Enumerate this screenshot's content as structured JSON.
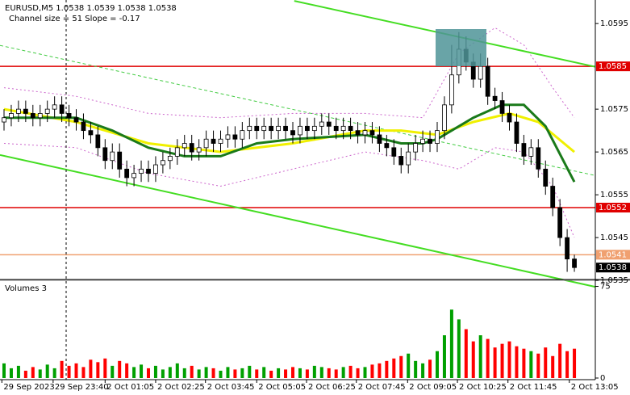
{
  "chart_data": {
    "type": "candlestick",
    "title": "EURUSD,M5  1.0538 1.0539 1.0538 1.0538",
    "subtitle": "Channel size = 51 Slope = -0.17",
    "volume_title": "Volumes 3",
    "open": [
      1.0572,
      1.0573,
      1.0574,
      1.0575,
      1.0574,
      1.0573,
      1.0574,
      1.0575,
      1.0576,
      1.0574,
      1.0573,
      1.0572,
      1.057,
      1.0569,
      1.0566,
      1.0563,
      1.0565,
      1.0561,
      1.0559,
      1.056,
      1.0561,
      1.056,
      1.0562,
      1.0563,
      1.0564,
      1.0566,
      1.0567,
      1.0565,
      1.0566,
      1.0568,
      1.0567,
      1.0568,
      1.0569,
      1.0568,
      1.057,
      1.0571,
      1.057,
      1.0571,
      1.057,
      1.0571,
      1.057,
      1.0569,
      1.0571,
      1.057,
      1.0571,
      1.0572,
      1.0571,
      1.057,
      1.0571,
      1.057,
      1.0569,
      1.057,
      1.0569,
      1.0567,
      1.0566,
      1.0564,
      1.0562,
      1.0565,
      1.0567,
      1.0568,
      1.0567,
      1.057,
      1.0576,
      1.0583,
      1.0589,
      1.0586,
      1.0582,
      1.0585,
      1.0578,
      1.0577,
      1.0574,
      1.0572,
      1.0567,
      1.0564,
      1.0566,
      1.0561,
      1.0557,
      1.0552,
      1.0545,
      1.054
    ],
    "high": [
      1.0575,
      1.0576,
      1.0577,
      1.0577,
      1.0576,
      1.0576,
      1.0577,
      1.0578,
      1.0578,
      1.0576,
      1.0575,
      1.0574,
      1.0572,
      1.0571,
      1.0568,
      1.0567,
      1.0567,
      1.0563,
      1.0562,
      1.0563,
      1.0563,
      1.0564,
      1.0565,
      1.0566,
      1.0568,
      1.0569,
      1.0569,
      1.0568,
      1.057,
      1.057,
      1.057,
      1.0571,
      1.0571,
      1.0572,
      1.0573,
      1.0573,
      1.0573,
      1.0573,
      1.0573,
      1.0573,
      1.0572,
      1.0573,
      1.0573,
      1.0573,
      1.0574,
      1.0574,
      1.0573,
      1.0573,
      1.0573,
      1.0572,
      1.0572,
      1.0572,
      1.0571,
      1.0569,
      1.0568,
      1.0566,
      1.0567,
      1.0569,
      1.057,
      1.057,
      1.0572,
      1.0578,
      1.059,
      1.0593,
      1.0592,
      1.0588,
      1.0588,
      1.0587,
      1.058,
      1.0579,
      1.0576,
      1.0574,
      1.0569,
      1.0568,
      1.0568,
      1.0563,
      1.0559,
      1.0554,
      1.0547,
      1.0541
    ],
    "low": [
      1.057,
      1.0571,
      1.0572,
      1.0572,
      1.0571,
      1.0571,
      1.0572,
      1.0573,
      1.0572,
      1.0571,
      1.057,
      1.0568,
      1.0567,
      1.0564,
      1.0561,
      1.0561,
      1.0559,
      1.0557,
      1.0557,
      1.0558,
      1.0558,
      1.0558,
      1.056,
      1.0561,
      1.0562,
      1.0564,
      1.0563,
      1.0563,
      1.0564,
      1.0565,
      1.0565,
      1.0566,
      1.0566,
      1.0566,
      1.0568,
      1.0568,
      1.0568,
      1.0568,
      1.0568,
      1.0568,
      1.0567,
      1.0567,
      1.0568,
      1.0568,
      1.0569,
      1.0569,
      1.0568,
      1.0568,
      1.0568,
      1.0567,
      1.0567,
      1.0567,
      1.0565,
      1.0564,
      1.0562,
      1.056,
      1.056,
      1.0563,
      1.0565,
      1.0565,
      1.0565,
      1.0568,
      1.0574,
      1.0581,
      1.0584,
      1.058,
      1.058,
      1.0576,
      1.0575,
      1.0572,
      1.057,
      1.0565,
      1.0562,
      1.0562,
      1.0559,
      1.0555,
      1.055,
      1.0543,
      1.0537,
      1.0537
    ],
    "close": [
      1.0573,
      1.0574,
      1.0575,
      1.0574,
      1.0573,
      1.0574,
      1.0575,
      1.0576,
      1.0574,
      1.0573,
      1.0572,
      1.057,
      1.0569,
      1.0566,
      1.0563,
      1.0565,
      1.0561,
      1.0559,
      1.056,
      1.0561,
      1.056,
      1.0562,
      1.0563,
      1.0564,
      1.0566,
      1.0567,
      1.0565,
      1.0566,
      1.0568,
      1.0567,
      1.0568,
      1.0569,
      1.0568,
      1.057,
      1.0571,
      1.057,
      1.0571,
      1.057,
      1.0571,
      1.057,
      1.0569,
      1.0571,
      1.057,
      1.0571,
      1.0572,
      1.0571,
      1.057,
      1.0571,
      1.057,
      1.0569,
      1.057,
      1.0569,
      1.0567,
      1.0566,
      1.0564,
      1.0562,
      1.0565,
      1.0567,
      1.0568,
      1.0567,
      1.057,
      1.0576,
      1.0583,
      1.0589,
      1.0586,
      1.0582,
      1.0585,
      1.0578,
      1.0577,
      1.0574,
      1.0572,
      1.0567,
      1.0564,
      1.0566,
      1.0561,
      1.0557,
      1.0552,
      1.0545,
      1.054,
      1.0538
    ],
    "volumes": [
      12,
      8,
      10,
      6,
      9,
      7,
      11,
      8,
      14,
      10,
      12,
      9,
      15,
      13,
      16,
      10,
      14,
      12,
      9,
      11,
      8,
      10,
      7,
      9,
      12,
      8,
      10,
      7,
      9,
      8,
      6,
      9,
      7,
      8,
      10,
      7,
      9,
      6,
      8,
      7,
      9,
      8,
      7,
      10,
      9,
      8,
      7,
      9,
      10,
      8,
      9,
      11,
      12,
      14,
      16,
      18,
      20,
      14,
      12,
      15,
      22,
      35,
      56,
      48,
      40,
      30,
      35,
      32,
      25,
      28,
      30,
      26,
      24,
      22,
      20,
      25,
      18,
      28,
      22,
      24
    ],
    "up_color": "#00a000",
    "down_color": "#ff0000",
    "ylim": [
      1.05354,
      1.06005
    ],
    "yticks": [
      1.0595,
      1.0575,
      1.0565,
      1.0555,
      1.0545,
      1.0535
    ],
    "volume_ylim": [
      0,
      78
    ],
    "volume_yticks": [
      75,
      0
    ],
    "xticks": [
      {
        "value": -0.3,
        "label": "29 Sep 2023"
      },
      {
        "value": 6.8,
        "label": "29 Sep 23:40"
      },
      {
        "value": 14.0,
        "label": "2 Oct 01:05"
      },
      {
        "value": 21.0,
        "label": "2 Oct 02:25"
      },
      {
        "value": 27.9,
        "label": "2 Oct 03:45"
      },
      {
        "value": 35.0,
        "label": "2 Oct 05:05"
      },
      {
        "value": 41.9,
        "label": "2 Oct 06:25"
      },
      {
        "value": 48.8,
        "label": "2 Oct 07:45"
      },
      {
        "value": 55.9,
        "label": "2 Oct 09:05"
      },
      {
        "value": 62.8,
        "label": "2 Oct 10:25"
      },
      {
        "value": 69.8,
        "label": "2 Oct 11:45"
      },
      {
        "value": 78.3,
        "label": "2 Oct 13:05"
      }
    ],
    "levels": [
      {
        "value": 1.0585,
        "color": "#e00000",
        "line": true
      },
      {
        "value": 1.0552,
        "color": "#e00000",
        "line": true
      },
      {
        "value": 1.0541,
        "color": "#f0a070",
        "line": true
      },
      {
        "value": 1.0538,
        "color": "#000000",
        "line": false
      }
    ],
    "overlays": [
      {
        "color": "#cc66cc",
        "style": "dotted",
        "x": [
          0,
          10,
          20,
          30,
          40,
          50,
          58,
          63,
          68,
          72,
          76,
          79
        ],
        "values": [
          1.058,
          1.0578,
          1.0574,
          1.0573,
          1.0574,
          1.0574,
          1.0573,
          1.0588,
          1.0594,
          1.059,
          1.058,
          1.0573
        ]
      },
      {
        "color": "#cc66cc",
        "style": "dotted",
        "x": [
          0,
          10,
          20,
          30,
          40,
          50,
          58,
          63,
          68,
          72,
          76,
          79
        ],
        "values": [
          1.0567,
          1.0566,
          1.056,
          1.0557,
          1.0561,
          1.0565,
          1.0563,
          1.0561,
          1.0566,
          1.0565,
          1.0557,
          1.0545
        ]
      },
      {
        "color": "#44cc44",
        "style": "dashed",
        "x": [
          -0.56,
          81.9
        ],
        "values": [
          1.05899,
          1.05595
        ]
      },
      {
        "color": "#44dd22",
        "style": "solid",
        "x": [
          40.2,
          81.9
        ],
        "values": [
          1.06003,
          1.05849
        ]
      },
      {
        "color": "#44dd22",
        "style": "solid",
        "x": [
          -0.56,
          81.9
        ],
        "values": [
          1.05643,
          1.05335
        ]
      },
      {
        "color": "#f0f000",
        "style": "thick",
        "x": [
          0,
          10,
          20,
          30,
          40,
          50,
          55,
          60,
          65,
          70,
          74,
          79
        ],
        "values": [
          1.0575,
          1.0572,
          1.0567,
          1.0565,
          1.0567,
          1.057,
          1.057,
          1.0569,
          1.0572,
          1.0574,
          1.0572,
          1.0565
        ]
      },
      {
        "color": "#1a7a1a",
        "style": "thick",
        "x": [
          0,
          5,
          10,
          15,
          20,
          25,
          30,
          35,
          40,
          50,
          55,
          58,
          60,
          65,
          69,
          72,
          75,
          79
        ],
        "values": [
          1.0573,
          1.0573,
          1.0573,
          1.057,
          1.0566,
          1.0564,
          1.0564,
          1.0567,
          1.0568,
          1.0569,
          1.0567,
          1.0567,
          1.0568,
          1.0573,
          1.0576,
          1.0576,
          1.0571,
          1.0558
        ]
      }
    ]
  }
}
